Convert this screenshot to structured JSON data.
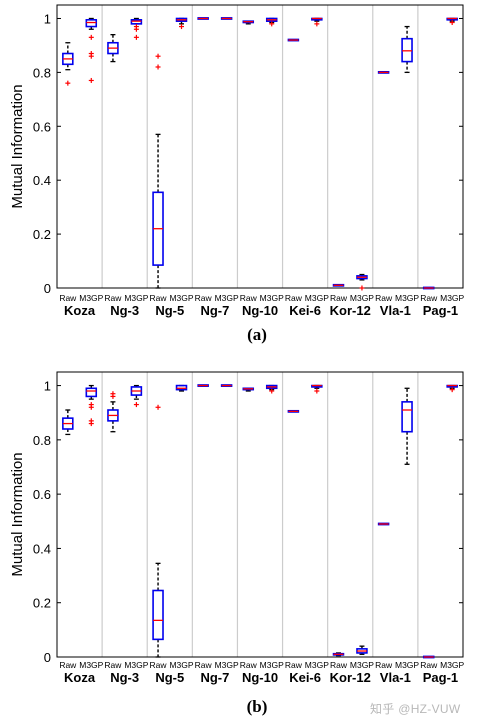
{
  "watermark": "知乎 @HZ-VUW",
  "chart_data": [
    {
      "type": "box",
      "caption": "(a)",
      "ylabel": "Mutual Information",
      "ylim": [
        0,
        1.05
      ],
      "yticks": [
        0,
        0.2,
        0.4,
        0.6,
        0.8,
        1
      ],
      "ytick_labels": [
        "0",
        "0.2",
        "0.4",
        "0.6",
        "0.8",
        "1"
      ],
      "groups": [
        "Koza",
        "Ng-3",
        "Ng-5",
        "Ng-7",
        "Ng-10",
        "Kei-6",
        "Kor-12",
        "Vla-1",
        "Pag-1"
      ],
      "methods": [
        "Raw",
        "M3GP"
      ],
      "grid": "vertical separators between groups",
      "boxes": [
        {
          "group": "Koza",
          "method": "Raw",
          "whislo": 0.81,
          "q1": 0.83,
          "med": 0.85,
          "q3": 0.87,
          "whishi": 0.91,
          "fliers": [
            0.76
          ]
        },
        {
          "group": "Koza",
          "method": "M3GP",
          "whislo": 0.96,
          "q1": 0.97,
          "med": 0.985,
          "q3": 0.995,
          "whishi": 1.0,
          "fliers": [
            0.93,
            0.87,
            0.86,
            0.77
          ]
        },
        {
          "group": "Ng-3",
          "method": "Raw",
          "whislo": 0.84,
          "q1": 0.87,
          "med": 0.89,
          "q3": 0.91,
          "whishi": 0.94,
          "fliers": []
        },
        {
          "group": "Ng-3",
          "method": "M3GP",
          "whislo": 0.98,
          "q1": 0.98,
          "med": 0.99,
          "q3": 0.995,
          "whishi": 1.0,
          "fliers": [
            0.97,
            0.96,
            0.93
          ]
        },
        {
          "group": "Ng-5",
          "method": "Raw",
          "whislo": 0.0,
          "q1": 0.085,
          "med": 0.22,
          "q3": 0.355,
          "whishi": 0.57,
          "fliers": [
            0.86,
            0.82
          ]
        },
        {
          "group": "Ng-5",
          "method": "M3GP",
          "whislo": 0.98,
          "q1": 0.99,
          "med": 0.995,
          "q3": 1.0,
          "whishi": 1.0,
          "fliers": [
            0.97
          ]
        },
        {
          "group": "Ng-7",
          "method": "Raw",
          "whislo": 1.0,
          "q1": 1.0,
          "med": 1.0,
          "q3": 1.0,
          "whishi": 1.0,
          "fliers": []
        },
        {
          "group": "Ng-7",
          "method": "M3GP",
          "whislo": 1.0,
          "q1": 1.0,
          "med": 1.0,
          "q3": 1.0,
          "whishi": 1.0,
          "fliers": []
        },
        {
          "group": "Ng-10",
          "method": "Raw",
          "whislo": 0.98,
          "q1": 0.985,
          "med": 0.988,
          "q3": 0.99,
          "whishi": 0.99,
          "fliers": []
        },
        {
          "group": "Ng-10",
          "method": "M3GP",
          "whislo": 0.985,
          "q1": 0.99,
          "med": 0.995,
          "q3": 1.0,
          "whishi": 1.0,
          "fliers": [
            0.98
          ]
        },
        {
          "group": "Kei-6",
          "method": "Raw",
          "whislo": 0.92,
          "q1": 0.92,
          "med": 0.92,
          "q3": 0.92,
          "whishi": 0.92,
          "fliers": []
        },
        {
          "group": "Kei-6",
          "method": "M3GP",
          "whislo": 0.99,
          "q1": 0.995,
          "med": 1.0,
          "q3": 1.0,
          "whishi": 1.0,
          "fliers": [
            0.98
          ]
        },
        {
          "group": "Kor-12",
          "method": "Raw",
          "whislo": 0.01,
          "q1": 0.01,
          "med": 0.01,
          "q3": 0.01,
          "whishi": 0.01,
          "fliers": []
        },
        {
          "group": "Kor-12",
          "method": "M3GP",
          "whislo": 0.03,
          "q1": 0.035,
          "med": 0.04,
          "q3": 0.045,
          "whishi": 0.05,
          "fliers": [
            0.0
          ]
        },
        {
          "group": "Vla-1",
          "method": "Raw",
          "whislo": 0.8,
          "q1": 0.8,
          "med": 0.8,
          "q3": 0.8,
          "whishi": 0.8,
          "fliers": []
        },
        {
          "group": "Vla-1",
          "method": "M3GP",
          "whislo": 0.8,
          "q1": 0.84,
          "med": 0.88,
          "q3": 0.925,
          "whishi": 0.97,
          "fliers": []
        },
        {
          "group": "Pag-1",
          "method": "Raw",
          "whislo": 0.0,
          "q1": 0.0,
          "med": 0.0,
          "q3": 0.0,
          "whishi": 0.0,
          "fliers": []
        },
        {
          "group": "Pag-1",
          "method": "M3GP",
          "whislo": 0.99,
          "q1": 0.995,
          "med": 1.0,
          "q3": 1.0,
          "whishi": 1.0,
          "fliers": [
            0.985
          ]
        }
      ]
    },
    {
      "type": "box",
      "caption": "(b)",
      "ylabel": "Mutual Information",
      "ylim": [
        0,
        1.05
      ],
      "yticks": [
        0,
        0.2,
        0.4,
        0.6,
        0.8,
        1
      ],
      "ytick_labels": [
        "0",
        "0.2",
        "0.4",
        "0.6",
        "0.8",
        "1"
      ],
      "groups": [
        "Koza",
        "Ng-3",
        "Ng-5",
        "Ng-7",
        "Ng-10",
        "Kei-6",
        "Kor-12",
        "Vla-1",
        "Pag-1"
      ],
      "methods": [
        "Raw",
        "M3GP"
      ],
      "grid": "vertical separators between groups",
      "boxes": [
        {
          "group": "Koza",
          "method": "Raw",
          "whislo": 0.82,
          "q1": 0.84,
          "med": 0.86,
          "q3": 0.88,
          "whishi": 0.91,
          "fliers": []
        },
        {
          "group": "Koza",
          "method": "M3GP",
          "whislo": 0.95,
          "q1": 0.96,
          "med": 0.98,
          "q3": 0.99,
          "whishi": 1.0,
          "fliers": [
            0.93,
            0.92,
            0.87,
            0.86
          ]
        },
        {
          "group": "Ng-3",
          "method": "Raw",
          "whislo": 0.83,
          "q1": 0.87,
          "med": 0.89,
          "q3": 0.91,
          "whishi": 0.94,
          "fliers": [
            0.97,
            0.96
          ]
        },
        {
          "group": "Ng-3",
          "method": "M3GP",
          "whislo": 0.95,
          "q1": 0.965,
          "med": 0.98,
          "q3": 0.995,
          "whishi": 1.0,
          "fliers": [
            0.93
          ]
        },
        {
          "group": "Ng-5",
          "method": "Raw",
          "whislo": 0.0,
          "q1": 0.065,
          "med": 0.135,
          "q3": 0.245,
          "whishi": 0.345,
          "fliers": [
            0.92
          ]
        },
        {
          "group": "Ng-5",
          "method": "M3GP",
          "whislo": 0.98,
          "q1": 0.985,
          "med": 0.99,
          "q3": 1.0,
          "whishi": 1.0,
          "fliers": []
        },
        {
          "group": "Ng-7",
          "method": "Raw",
          "whislo": 1.0,
          "q1": 1.0,
          "med": 1.0,
          "q3": 1.0,
          "whishi": 1.0,
          "fliers": []
        },
        {
          "group": "Ng-7",
          "method": "M3GP",
          "whislo": 1.0,
          "q1": 1.0,
          "med": 1.0,
          "q3": 1.0,
          "whishi": 1.0,
          "fliers": []
        },
        {
          "group": "Ng-10",
          "method": "Raw",
          "whislo": 0.98,
          "q1": 0.985,
          "med": 0.988,
          "q3": 0.99,
          "whishi": 0.99,
          "fliers": []
        },
        {
          "group": "Ng-10",
          "method": "M3GP",
          "whislo": 0.985,
          "q1": 0.99,
          "med": 0.995,
          "q3": 1.0,
          "whishi": 1.0,
          "fliers": [
            0.98
          ]
        },
        {
          "group": "Kei-6",
          "method": "Raw",
          "whislo": 0.905,
          "q1": 0.905,
          "med": 0.905,
          "q3": 0.905,
          "whishi": 0.905,
          "fliers": []
        },
        {
          "group": "Kei-6",
          "method": "M3GP",
          "whislo": 0.99,
          "q1": 0.995,
          "med": 1.0,
          "q3": 1.0,
          "whishi": 1.0,
          "fliers": [
            0.98
          ]
        },
        {
          "group": "Kor-12",
          "method": "Raw",
          "whislo": 0.005,
          "q1": 0.008,
          "med": 0.01,
          "q3": 0.012,
          "whishi": 0.015,
          "fliers": []
        },
        {
          "group": "Kor-12",
          "method": "M3GP",
          "whislo": 0.01,
          "q1": 0.015,
          "med": 0.022,
          "q3": 0.03,
          "whishi": 0.04,
          "fliers": []
        },
        {
          "group": "Vla-1",
          "method": "Raw",
          "whislo": 0.49,
          "q1": 0.49,
          "med": 0.49,
          "q3": 0.49,
          "whishi": 0.49,
          "fliers": []
        },
        {
          "group": "Vla-1",
          "method": "M3GP",
          "whislo": 0.71,
          "q1": 0.83,
          "med": 0.91,
          "q3": 0.94,
          "whishi": 0.99,
          "fliers": []
        },
        {
          "group": "Pag-1",
          "method": "Raw",
          "whislo": 0.0,
          "q1": 0.0,
          "med": 0.0,
          "q3": 0.0,
          "whishi": 0.0,
          "fliers": []
        },
        {
          "group": "Pag-1",
          "method": "M3GP",
          "whislo": 0.99,
          "q1": 0.995,
          "med": 1.0,
          "q3": 1.0,
          "whishi": 1.0,
          "fliers": [
            0.985
          ]
        }
      ]
    }
  ],
  "colors": {
    "box": "#0000ee",
    "median": "#ff0000",
    "flier": "#ff0000",
    "whisker": "#000000",
    "axis": "#000000",
    "separator": "#cccccc"
  }
}
